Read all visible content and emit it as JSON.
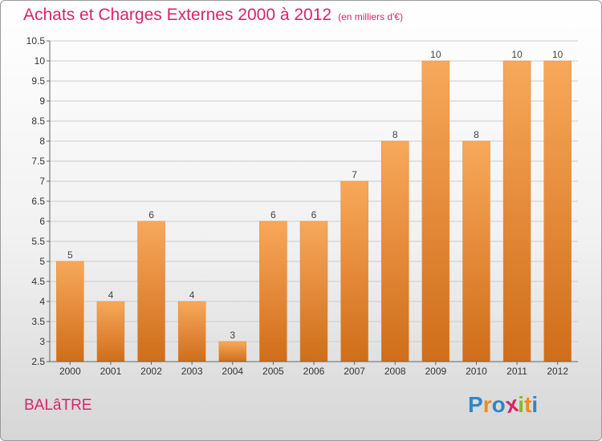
{
  "title": "Achats et Charges Externes 2000 à 2012",
  "unit": "(en milliers d'€)",
  "commune": "BALâTRE",
  "logo": {
    "letters": [
      "P",
      "r",
      "o",
      "x",
      "i",
      "t",
      "i"
    ],
    "colors": [
      "#2f87c8",
      "#f08a1c",
      "#2f87c8",
      "#d8256b",
      "#88b828",
      "#f08a1c",
      "#2f87c8"
    ]
  },
  "colors": {
    "title": "#d8256b",
    "bar_light": "#f8a85a",
    "bar_dark": "#cf6d1a",
    "grid": "#cccccc"
  },
  "chart_data": {
    "type": "bar",
    "categories": [
      "2000",
      "2001",
      "2002",
      "2003",
      "2004",
      "2005",
      "2006",
      "2007",
      "2008",
      "2009",
      "2010",
      "2011",
      "2012"
    ],
    "values": [
      5,
      4,
      6,
      4,
      3,
      6,
      6,
      7,
      8,
      10,
      8,
      10,
      10
    ],
    "data_labels": [
      "5",
      "4",
      "6",
      "4",
      "3",
      "6",
      "6",
      "7",
      "8",
      "10",
      "8",
      "10",
      "10"
    ],
    "ylim": [
      2.5,
      10.5
    ],
    "yticks": [
      2.5,
      3,
      3.5,
      4,
      4.5,
      5,
      5.5,
      6,
      6.5,
      7,
      7.5,
      8,
      8.5,
      9,
      9.5,
      10,
      10.5
    ],
    "ytick_labels": [
      "2.5",
      "3",
      "3.5",
      "4",
      "4.5",
      "5",
      "5.5",
      "6",
      "6.5",
      "7",
      "7.5",
      "8",
      "8.5",
      "9",
      "9.5",
      "10",
      "10.5"
    ],
    "grid": true,
    "title": "Achats et Charges Externes 2000 à 2012",
    "xlabel": "",
    "ylabel": ""
  }
}
